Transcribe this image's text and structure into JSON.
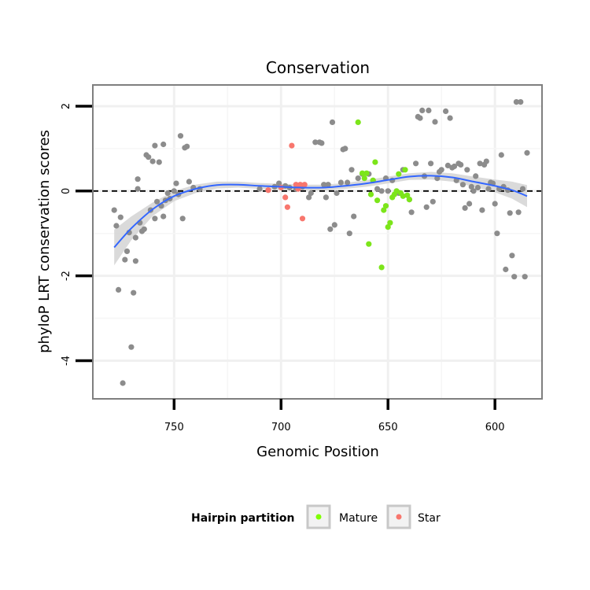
{
  "chart_data": {
    "type": "scatter",
    "title": "Conservation",
    "xlabel": "Genomic Position",
    "ylabel": "phyloP LRT conservation scores",
    "x_reversed": true,
    "xlim": [
      788,
      578
    ],
    "ylim": [
      -4.9,
      2.5
    ],
    "xticks": [
      750,
      700,
      650,
      600
    ],
    "yticks": [
      2,
      0,
      -2,
      -4
    ],
    "grid": true,
    "reference_line": {
      "y": 0,
      "style": "dashed"
    },
    "legend": {
      "title": "Hairpin partition",
      "placement": "bottom",
      "entries": [
        {
          "name": "Mature",
          "color": "#7FFF00"
        },
        {
          "name": "Star",
          "color": "#F8766D"
        }
      ]
    },
    "colors": {
      "other": "#8C8C8C",
      "mature": "#7CE51A",
      "star": "#F8766D",
      "smooth": "#3366FF",
      "band": "#D3D3D3"
    },
    "series": [
      {
        "group": "other",
        "points": [
          [
            778,
            -0.45
          ],
          [
            777,
            -0.82
          ],
          [
            776,
            -2.33
          ],
          [
            775,
            -0.62
          ],
          [
            774,
            -4.53
          ],
          [
            773,
            -1.62
          ],
          [
            772,
            -1.42
          ],
          [
            771,
            -0.98
          ],
          [
            770,
            -3.68
          ],
          [
            769,
            -2.4
          ],
          [
            768,
            -1.1
          ],
          [
            768,
            -1.65
          ],
          [
            767,
            0.28
          ],
          [
            767,
            0.05
          ],
          [
            766,
            -0.75
          ],
          [
            765,
            -0.95
          ],
          [
            764,
            -0.9
          ],
          [
            763,
            0.85
          ],
          [
            762,
            0.8
          ],
          [
            761,
            -0.45
          ],
          [
            760,
            0.7
          ],
          [
            759,
            1.07
          ],
          [
            759,
            -0.65
          ],
          [
            758,
            -0.25
          ],
          [
            757,
            0.68
          ],
          [
            756,
            -0.35
          ],
          [
            755,
            -0.6
          ],
          [
            755,
            1.1
          ],
          [
            754,
            -0.22
          ],
          [
            753,
            -0.05
          ],
          [
            752,
            -0.18
          ],
          [
            750,
            0.0
          ],
          [
            749,
            0.18
          ],
          [
            748,
            -0.08
          ],
          [
            747,
            1.3
          ],
          [
            746,
            -0.65
          ],
          [
            745,
            1.02
          ],
          [
            744,
            1.05
          ],
          [
            743,
            0.22
          ],
          [
            741,
            0.08
          ],
          [
            738,
            0.05
          ],
          [
            710,
            0.05
          ],
          [
            706,
            0.02
          ],
          [
            703,
            0.1
          ],
          [
            701,
            0.18
          ],
          [
            698,
            0.12
          ],
          [
            696,
            0.08
          ],
          [
            693,
            0.05
          ],
          [
            690,
            0.1
          ],
          [
            687,
            -0.15
          ],
          [
            686,
            -0.05
          ],
          [
            684,
            1.15
          ],
          [
            682,
            1.15
          ],
          [
            681,
            1.13
          ],
          [
            680,
            0.15
          ],
          [
            679,
            -0.15
          ],
          [
            678,
            0.15
          ],
          [
            677,
            -0.9
          ],
          [
            676,
            1.62
          ],
          [
            675,
            -0.8
          ],
          [
            674,
            -0.05
          ],
          [
            672,
            0.2
          ],
          [
            671,
            0.98
          ],
          [
            670,
            1.0
          ],
          [
            669,
            0.2
          ],
          [
            668,
            -1.0
          ],
          [
            667,
            0.5
          ],
          [
            666,
            -0.6
          ],
          [
            664,
            0.3
          ],
          [
            662,
            0.4
          ],
          [
            659,
            0.4
          ],
          [
            657,
            0.25
          ],
          [
            655,
            0.05
          ],
          [
            653,
            0.0
          ],
          [
            651,
            0.3
          ],
          [
            650,
            0.0
          ],
          [
            648,
            0.25
          ],
          [
            645,
            -0.05
          ],
          [
            643,
            0.5
          ],
          [
            640,
            -0.2
          ],
          [
            639,
            -0.5
          ],
          [
            637,
            0.65
          ],
          [
            636,
            1.75
          ],
          [
            635,
            1.72
          ],
          [
            634,
            1.9
          ],
          [
            633,
            0.35
          ],
          [
            632,
            -0.38
          ],
          [
            631,
            1.9
          ],
          [
            630,
            0.65
          ],
          [
            629,
            -0.25
          ],
          [
            628,
            1.63
          ],
          [
            627,
            0.3
          ],
          [
            626,
            0.45
          ],
          [
            625,
            0.5
          ],
          [
            623,
            1.88
          ],
          [
            622,
            0.6
          ],
          [
            621,
            1.72
          ],
          [
            620,
            0.55
          ],
          [
            619,
            0.58
          ],
          [
            618,
            0.25
          ],
          [
            617,
            0.65
          ],
          [
            616,
            0.62
          ],
          [
            615,
            0.15
          ],
          [
            614,
            -0.4
          ],
          [
            613,
            0.5
          ],
          [
            612,
            -0.3
          ],
          [
            611,
            0.1
          ],
          [
            610,
            0.0
          ],
          [
            609,
            0.35
          ],
          [
            608,
            0.08
          ],
          [
            607,
            0.65
          ],
          [
            606,
            -0.45
          ],
          [
            605,
            0.62
          ],
          [
            604,
            0.7
          ],
          [
            603,
            0.05
          ],
          [
            602,
            0.2
          ],
          [
            601,
            0.18
          ],
          [
            600,
            -0.3
          ],
          [
            599,
            -1.0
          ],
          [
            598,
            0.05
          ],
          [
            597,
            0.85
          ],
          [
            596,
            0.1
          ],
          [
            595,
            -1.85
          ],
          [
            594,
            0.02
          ],
          [
            593,
            -0.52
          ],
          [
            592,
            -1.52
          ],
          [
            591,
            -2.02
          ],
          [
            590,
            2.1
          ],
          [
            589,
            -0.5
          ],
          [
            588,
            2.1
          ],
          [
            587,
            0.05
          ],
          [
            586,
            -2.02
          ],
          [
            585,
            0.9
          ]
        ]
      },
      {
        "group": "mature",
        "points": [
          [
            664,
            1.62
          ],
          [
            662,
            0.42
          ],
          [
            661,
            0.3
          ],
          [
            660,
            0.42
          ],
          [
            659,
            -1.25
          ],
          [
            658,
            -0.08
          ],
          [
            657,
            0.25
          ],
          [
            656,
            0.68
          ],
          [
            655,
            -0.22
          ],
          [
            653,
            -1.8
          ],
          [
            652,
            -0.45
          ],
          [
            651,
            -0.35
          ],
          [
            650,
            -0.85
          ],
          [
            649,
            -0.75
          ],
          [
            648,
            -0.15
          ],
          [
            647,
            -0.08
          ],
          [
            646,
            0.0
          ],
          [
            645,
            0.4
          ],
          [
            644,
            -0.05
          ],
          [
            643,
            -0.12
          ],
          [
            642,
            0.5
          ],
          [
            641,
            -0.1
          ],
          [
            640,
            -0.2
          ]
        ]
      },
      {
        "group": "star",
        "points": [
          [
            698,
            -0.15
          ],
          [
            697,
            -0.38
          ],
          [
            695,
            1.07
          ],
          [
            693,
            0.15
          ],
          [
            692,
            0.05
          ],
          [
            691,
            0.15
          ],
          [
            690,
            -0.65
          ],
          [
            689,
            0.15
          ],
          [
            706,
            0.02
          ],
          [
            700,
            0.08
          ]
        ]
      }
    ],
    "smooth": [
      [
        778,
        -1.33
      ],
      [
        770,
        -0.88
      ],
      [
        760,
        -0.43
      ],
      [
        750,
        -0.12
      ],
      [
        740,
        0.05
      ],
      [
        730,
        0.14
      ],
      [
        720,
        0.15
      ],
      [
        710,
        0.12
      ],
      [
        700,
        0.1
      ],
      [
        690,
        0.08
      ],
      [
        680,
        0.08
      ],
      [
        670,
        0.12
      ],
      [
        660,
        0.18
      ],
      [
        650,
        0.26
      ],
      [
        640,
        0.34
      ],
      [
        630,
        0.36
      ],
      [
        620,
        0.32
      ],
      [
        610,
        0.22
      ],
      [
        600,
        0.12
      ],
      [
        592,
        0.02
      ],
      [
        585,
        -0.12
      ]
    ],
    "band_halfwidth": [
      [
        778,
        0.42
      ],
      [
        770,
        0.28
      ],
      [
        760,
        0.16
      ],
      [
        750,
        0.12
      ],
      [
        740,
        0.1
      ],
      [
        730,
        0.08
      ],
      [
        720,
        0.07
      ],
      [
        710,
        0.07
      ],
      [
        700,
        0.07
      ],
      [
        690,
        0.07
      ],
      [
        680,
        0.07
      ],
      [
        670,
        0.07
      ],
      [
        660,
        0.08
      ],
      [
        650,
        0.08
      ],
      [
        640,
        0.08
      ],
      [
        630,
        0.09
      ],
      [
        620,
        0.1
      ],
      [
        610,
        0.12
      ],
      [
        600,
        0.15
      ],
      [
        592,
        0.2
      ],
      [
        585,
        0.26
      ]
    ]
  }
}
